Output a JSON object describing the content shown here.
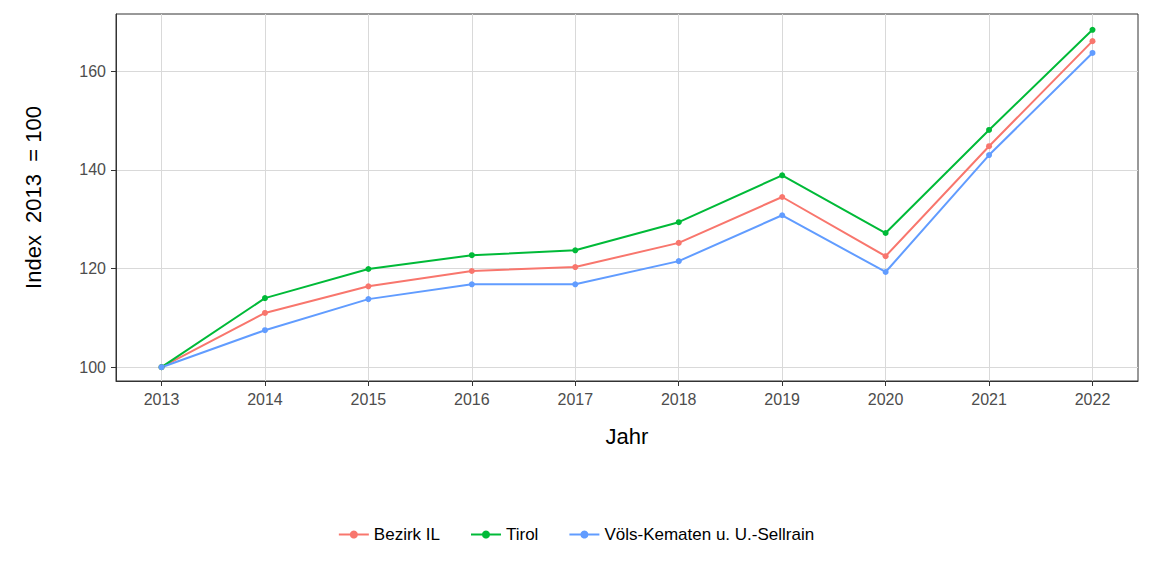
{
  "chart_data": {
    "type": "line",
    "x_label": "Jahr",
    "y_label": "Index  2013  = 100",
    "x": [
      2013,
      2014,
      2015,
      2016,
      2017,
      2018,
      2019,
      2020,
      2021,
      2022
    ],
    "xlim": [
      2012.56,
      2022.44
    ],
    "xticks": [
      2013,
      2014,
      2015,
      2016,
      2017,
      2018,
      2019,
      2020,
      2021,
      2022
    ],
    "ylim": [
      97.2,
      171.6
    ],
    "yticks": [
      100,
      120,
      140,
      160
    ],
    "grid": true,
    "legend": "bottom",
    "marker": "circle",
    "line_style": "solid",
    "series": [
      {
        "name": "Bezirk IL",
        "color": "#F8766D",
        "values": [
          100,
          111.0,
          116.4,
          119.5,
          120.3,
          125.2,
          134.5,
          122.5,
          144.8,
          166.1
        ]
      },
      {
        "name": "Tirol",
        "color": "#00BA38",
        "values": [
          100,
          114.0,
          119.9,
          122.7,
          123.7,
          129.4,
          138.9,
          127.2,
          148.1,
          168.4
        ]
      },
      {
        "name": "Völs-Kematen u. U.-Sellrain",
        "color": "#619CFF",
        "values": [
          100,
          107.5,
          113.8,
          116.8,
          116.8,
          121.5,
          130.8,
          119.3,
          143.0,
          163.7
        ]
      }
    ]
  }
}
